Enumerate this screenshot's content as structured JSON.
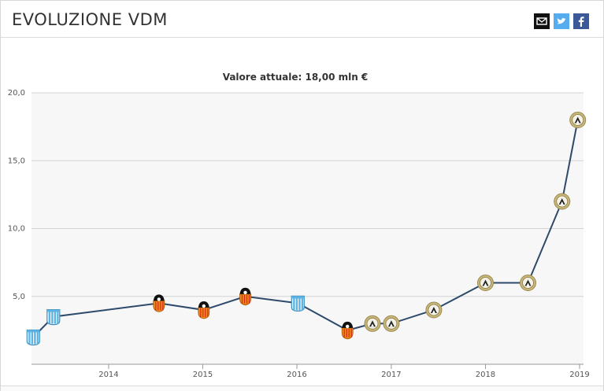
{
  "header": {
    "title": "EVOLUZIONE VDM",
    "share": [
      {
        "name": "email",
        "icon": "envelope-icon",
        "color": "#111111"
      },
      {
        "name": "twitter",
        "icon": "twitter-bird-icon",
        "color": "#55acee"
      },
      {
        "name": "facebook",
        "icon": "facebook-f-icon",
        "color": "#3b5998"
      }
    ]
  },
  "colors": {
    "line": "#2e4a6b",
    "plot_bg": "#f7f7f7",
    "grid": "#d3d3d3",
    "racing_blue": "#5db4e3",
    "valencia_orange": "#f08a1c",
    "udinese_gold": "#c9b779"
  },
  "chart_data": {
    "type": "line",
    "title": "Valore attuale: 18,00 mln €",
    "xlabel": "",
    "ylabel": "",
    "x_ticks": [
      "2014",
      "2015",
      "2016",
      "2017",
      "2018",
      "2019"
    ],
    "y_ticks": [
      "5,0",
      "10,0",
      "15,0",
      "20,0"
    ],
    "ylim": [
      0,
      20
    ],
    "xlim": [
      "2013-03-08",
      "2019-01-01"
    ],
    "grid": true,
    "legend": "none",
    "series": [
      {
        "points": [
          {
            "date": "2013-03-15",
            "value": 2.0,
            "club": "racing-icon"
          },
          {
            "date": "2013-06-01",
            "value": 3.5,
            "club": "racing-icon"
          },
          {
            "date": "2014-07-15",
            "value": 4.5,
            "club": "valencia-icon"
          },
          {
            "date": "2015-01-05",
            "value": 4.0,
            "club": "valencia-icon"
          },
          {
            "date": "2015-06-15",
            "value": 5.0,
            "club": "valencia-icon"
          },
          {
            "date": "2016-01-05",
            "value": 4.5,
            "club": "racing-icon"
          },
          {
            "date": "2016-07-15",
            "value": 2.5,
            "club": "valencia-icon"
          },
          {
            "date": "2016-10-20",
            "value": 3.0,
            "club": "udinese-icon"
          },
          {
            "date": "2017-01-01",
            "value": 3.0,
            "club": "udinese-icon"
          },
          {
            "date": "2017-06-15",
            "value": 4.0,
            "club": "udinese-icon"
          },
          {
            "date": "2018-01-01",
            "value": 6.0,
            "club": "udinese-icon"
          },
          {
            "date": "2018-06-15",
            "value": 6.0,
            "club": "udinese-icon"
          },
          {
            "date": "2018-10-25",
            "value": 12.0,
            "club": "udinese-icon"
          },
          {
            "date": "2018-12-25",
            "value": 18.0,
            "club": "udinese-icon"
          }
        ]
      }
    ]
  }
}
